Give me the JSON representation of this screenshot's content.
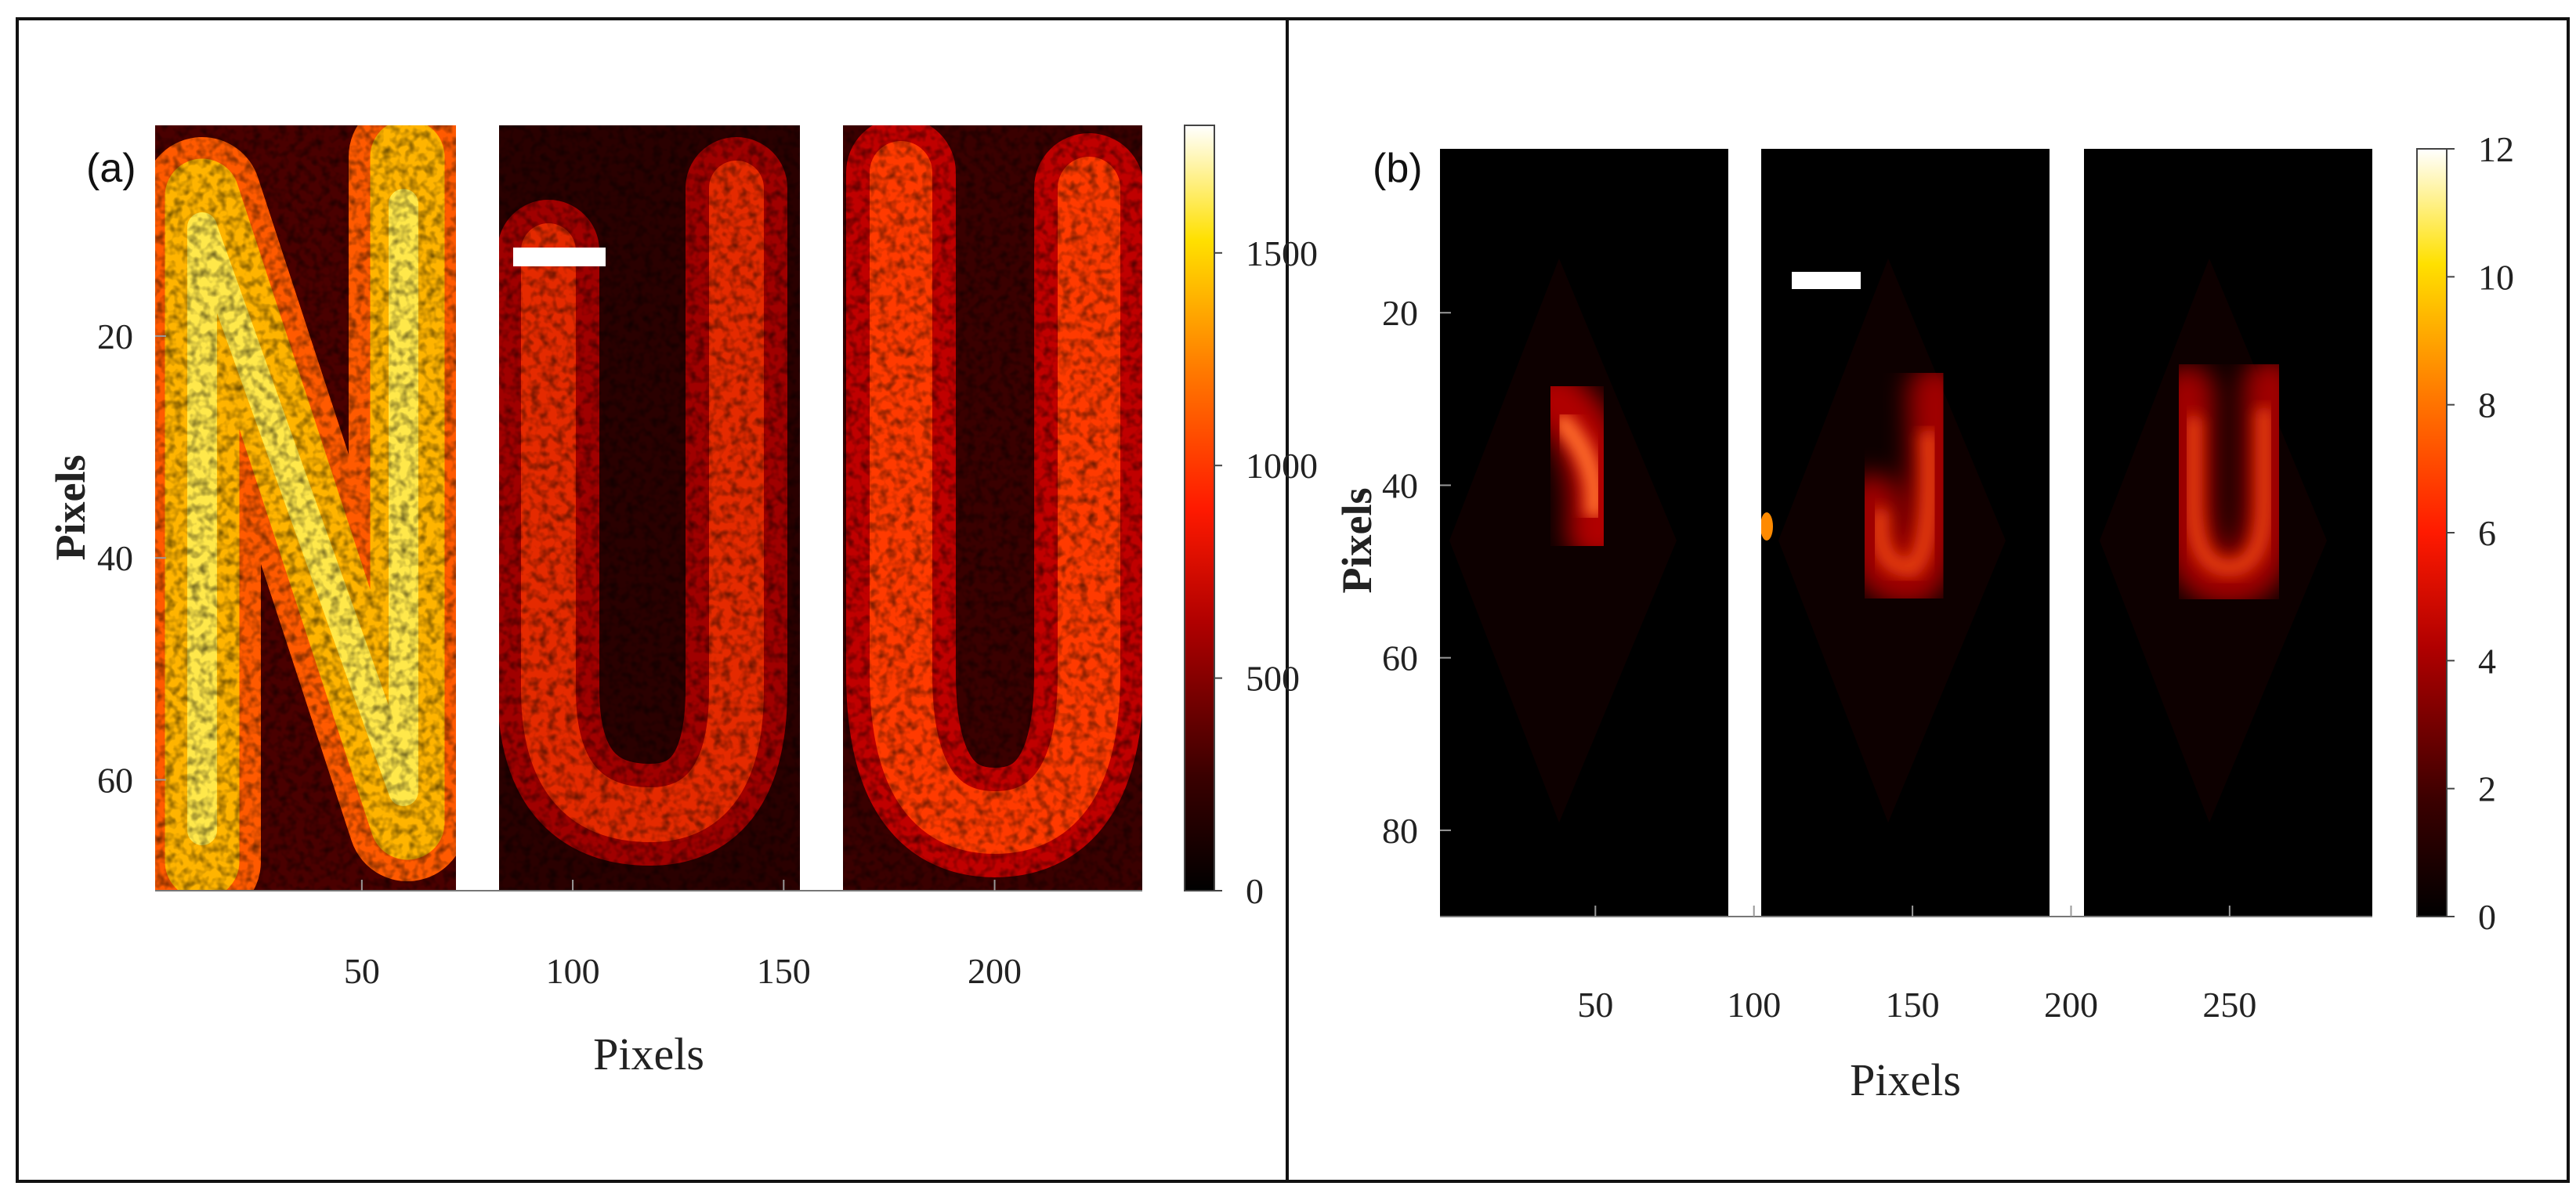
{
  "chart_data": [
    {
      "type": "heatmap",
      "panel_label": "(a)",
      "xlabel": "Pixels",
      "ylabel": "Pixels",
      "x_ticks": [
        50,
        100,
        150,
        200
      ],
      "y_ticks": [
        20,
        40,
        60
      ],
      "colorbar_ticks": [
        0,
        500,
        1000,
        1500
      ],
      "colormap": "hot",
      "subimages": [
        "N",
        "U",
        "U"
      ],
      "xlim": [
        1,
        235
      ],
      "ylim": [
        1,
        70
      ],
      "colorbar_range": [
        0,
        1800
      ]
    },
    {
      "type": "heatmap",
      "panel_label": "(b)",
      "xlabel": "Pixels",
      "ylabel": "Pixels",
      "x_ticks": [
        50,
        100,
        150,
        200,
        250
      ],
      "y_ticks": [
        20,
        40,
        60,
        80
      ],
      "colorbar_ticks": [
        0,
        2,
        4,
        6,
        8,
        10,
        12
      ],
      "colormap": "hot",
      "subimages": [
        "N",
        "U",
        "U"
      ],
      "xlim": [
        1,
        295
      ],
      "ylim": [
        1,
        90
      ],
      "colorbar_range": [
        0,
        12
      ]
    }
  ]
}
